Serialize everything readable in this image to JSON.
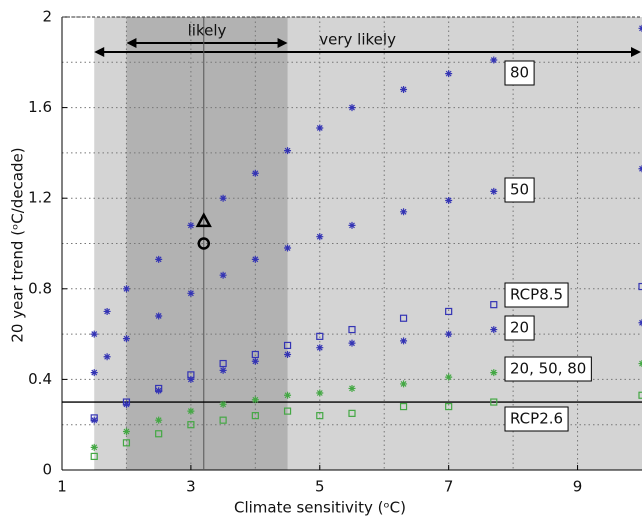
{
  "chart_data": {
    "type": "scatter",
    "x_label": "Climate sensitivity (ᵒC)",
    "y_label": "20 year trend (ᵒC/decade)",
    "xlim": [
      1,
      10
    ],
    "ylim": [
      0,
      2
    ],
    "xticks": [
      1,
      3,
      5,
      7,
      9
    ],
    "minor_xticks": [
      2,
      4,
      6,
      8
    ],
    "yticks": [
      0,
      0.4,
      0.8,
      1.2,
      1.6,
      2
    ],
    "minor_yticks": [
      0.2,
      0.6,
      1,
      1.4,
      1.8
    ],
    "grid": true,
    "ranges": [
      {
        "label": "very likely",
        "x": [
          1.5,
          10
        ]
      },
      {
        "label": "likely",
        "x": [
          2,
          4.5
        ]
      }
    ],
    "vline": 3.2,
    "hline": 0.3,
    "markers": [
      {
        "shape": "triangle",
        "x": 3.2,
        "y": 1.1
      },
      {
        "shape": "circle",
        "x": 3.2,
        "y": 1.0
      }
    ],
    "series": [
      {
        "name": "80",
        "color": "#3434b4",
        "marker": "star",
        "x": [
          1.5,
          1.7,
          2,
          2.5,
          3,
          3.5,
          4,
          4.5,
          5,
          5.5,
          6.3,
          7,
          7.7,
          10
        ],
        "values": [
          0.6,
          0.7,
          0.8,
          0.93,
          1.08,
          1.2,
          1.31,
          1.41,
          1.51,
          1.6,
          1.68,
          1.75,
          1.81,
          1.95
        ]
      },
      {
        "name": "50",
        "color": "#3434b4",
        "marker": "star",
        "x": [
          1.5,
          1.7,
          2,
          2.5,
          3,
          3.5,
          4,
          4.5,
          5,
          5.5,
          6.3,
          7,
          7.7,
          10
        ],
        "values": [
          0.43,
          0.5,
          0.58,
          0.68,
          0.78,
          0.86,
          0.93,
          0.98,
          1.03,
          1.08,
          1.14,
          1.19,
          1.23,
          1.33
        ]
      },
      {
        "name": "RCP8.5",
        "color": "#3434b4",
        "marker": "square",
        "x": [
          1.5,
          2,
          2.5,
          3,
          3.5,
          4,
          4.5,
          5,
          5.5,
          6.3,
          7,
          7.7,
          10
        ],
        "values": [
          0.23,
          0.3,
          0.36,
          0.42,
          0.47,
          0.51,
          0.55,
          0.59,
          0.62,
          0.67,
          0.7,
          0.73,
          0.81
        ]
      },
      {
        "name": "20",
        "color": "#3434b4",
        "marker": "star",
        "x": [
          1.5,
          2,
          2.5,
          3,
          3.5,
          4,
          4.5,
          5,
          5.5,
          6.3,
          7,
          7.7,
          10
        ],
        "values": [
          0.22,
          0.29,
          0.35,
          0.4,
          0.44,
          0.48,
          0.51,
          0.54,
          0.56,
          0.57,
          0.6,
          0.62,
          0.65
        ]
      },
      {
        "name": "20, 50, 80",
        "color": "#44a844",
        "marker": "star",
        "x": [
          1.5,
          2,
          2.5,
          3,
          3.5,
          4,
          4.5,
          5,
          5.5,
          6.3,
          7,
          7.7,
          10
        ],
        "values": [
          0.1,
          0.17,
          0.22,
          0.26,
          0.29,
          0.31,
          0.33,
          0.34,
          0.36,
          0.38,
          0.41,
          0.43,
          0.47
        ]
      },
      {
        "name": "RCP2.6",
        "color": "#44a844",
        "marker": "square",
        "x": [
          1.5,
          2,
          2.5,
          3,
          3.5,
          4,
          4.5,
          5,
          5.5,
          6.3,
          7,
          7.7,
          10
        ],
        "values": [
          0.06,
          0.12,
          0.16,
          0.2,
          0.22,
          0.24,
          0.26,
          0.24,
          0.25,
          0.28,
          0.28,
          0.3,
          0.33
        ]
      }
    ]
  }
}
